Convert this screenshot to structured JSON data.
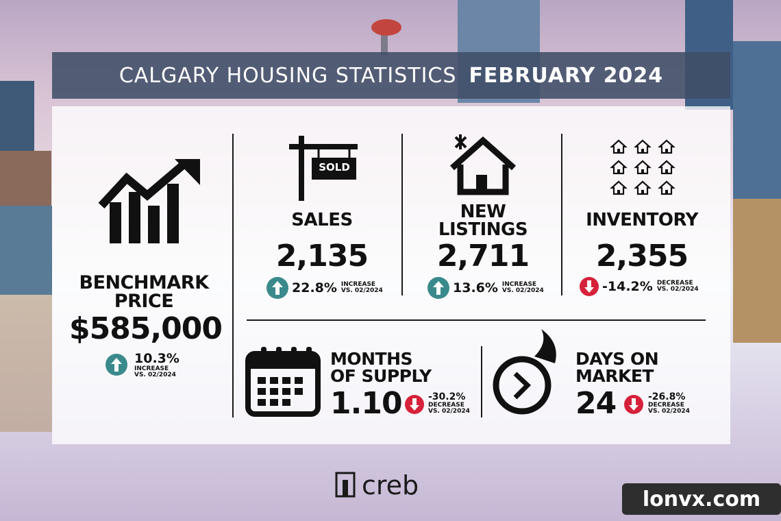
{
  "header": {
    "title": "CALGARY HOUSING STATISTICS",
    "period": "FEBRUARY 2024"
  },
  "benchmark": {
    "label": [
      "BENCHMARK",
      "PRICE"
    ],
    "value": "$585,000",
    "change": "10.3%",
    "direction": "INCREASE",
    "comparison": "VS. 02/2024"
  },
  "sales": {
    "sign": "SOLD",
    "label": [
      "SALES"
    ],
    "value": "2,135",
    "change": "22.8%",
    "direction": "INCREASE",
    "comparison": "VS. 02/2024"
  },
  "new_listings": {
    "label": [
      "NEW",
      "LISTINGS"
    ],
    "value": "2,711",
    "change": "13.6%",
    "direction": "INCREASE",
    "comparison": "VS. 02/2024"
  },
  "inventory": {
    "label": [
      "INVENTORY"
    ],
    "value": "2,355",
    "change": "-14.2%",
    "direction": "DECREASE",
    "comparison": "VS. 02/2024"
  },
  "months_of_supply": {
    "label": [
      "MONTHS",
      "OF SUPPLY"
    ],
    "value": "1.10",
    "change": "-30.2%",
    "direction": "DECREASE",
    "comparison": "VS. 02/2024"
  },
  "days_on_market": {
    "label": [
      "DAYS ON",
      "MARKET"
    ],
    "value": "24",
    "change": "-26.8%",
    "direction": "DECREASE",
    "comparison": "VS. 02/2024"
  },
  "footer": {
    "logo": "creb",
    "watermark": "lonvx.com"
  }
}
